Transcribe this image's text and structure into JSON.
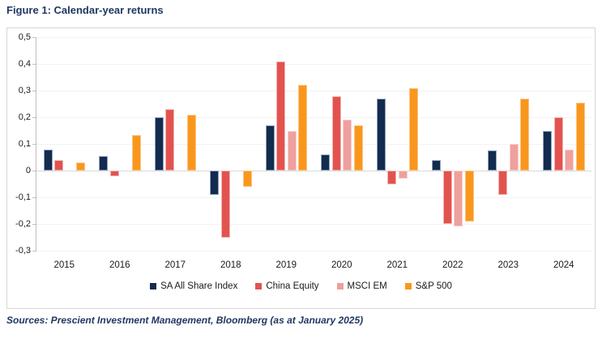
{
  "title": "Figure 1: Calendar-year returns",
  "footer": "Sources: Prescient Investment Management, Bloomberg (as at January 2025)",
  "colors": {
    "title_text": "#1F3864",
    "grid": "#F2F2F2",
    "zero_line": "#D9D9D9",
    "axis": "#BFBFBF"
  },
  "chart_data": {
    "type": "bar",
    "title": "Figure 1: Calendar-year returns",
    "xlabel": "",
    "ylabel": "",
    "categories": [
      "2015",
      "2016",
      "2017",
      "2018",
      "2019",
      "2020",
      "2021",
      "2022",
      "2023",
      "2024"
    ],
    "series": [
      {
        "name": "SA All Share Index",
        "color": "#132B4F",
        "border_color": "#93A3BC",
        "values": [
          0.08,
          0.055,
          0.2,
          -0.09,
          0.17,
          0.06,
          0.27,
          0.04,
          0.075,
          0.15
        ]
      },
      {
        "name": "China Equity",
        "color": "#E2534F",
        "border_color": "#F2B4B1",
        "values": [
          0.04,
          -0.02,
          0.23,
          -0.25,
          0.41,
          0.28,
          -0.05,
          -0.2,
          -0.09,
          0.2
        ]
      },
      {
        "name": "MSCI EM",
        "color": "#EFA09D",
        "border_color": "#F8CFCD",
        "values": [
          0,
          0,
          0,
          0,
          0.15,
          0.19,
          -0.03,
          -0.21,
          0.1,
          0.08
        ]
      },
      {
        "name": "S&P 500",
        "color": "#F9971D",
        "border_color": "#FCC581",
        "values": [
          0.03,
          0.135,
          0.21,
          -0.06,
          0.32,
          0.17,
          0.31,
          -0.19,
          0.27,
          0.255
        ]
      }
    ],
    "ylim": [
      -0.3,
      0.5
    ],
    "ytick_step": 0.1,
    "ytick_labels": [
      "0,5",
      "0,4",
      "0,3",
      "0,2",
      "0,1",
      "0",
      "-0,1",
      "-0,2",
      "-0,3"
    ],
    "grid": true,
    "legend_position": "bottom"
  }
}
